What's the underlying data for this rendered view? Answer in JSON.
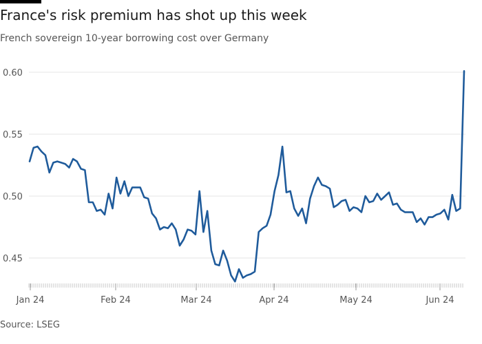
{
  "header": {
    "title": "France's risk premium has shot up this week",
    "subtitle": "French sovereign 10-year borrowing cost over Germany"
  },
  "footer": {
    "source": "Source: LSEG"
  },
  "colors": {
    "line": "#1f5b9b",
    "grid": "#e6e6e6",
    "text": "#555555"
  },
  "chart_data": {
    "type": "line",
    "title": "France's risk premium has shot up this week",
    "subtitle": "French sovereign 10-year borrowing cost over Germany",
    "xlabel": "",
    "ylabel": "",
    "ylim": [
      0.43,
      0.6
    ],
    "yticks": [
      0.45,
      0.5,
      0.55,
      0.6
    ],
    "ytick_labels": [
      "0.45",
      "0.50",
      "0.55",
      "0.60"
    ],
    "xtick_labels": [
      "Jan 24",
      "Feb 24",
      "Mar 24",
      "Apr 24",
      "May 24",
      "Jun 24"
    ],
    "grid": true,
    "series": [
      {
        "values": [
          0.528,
          0.539,
          0.54,
          0.536,
          0.533,
          0.519,
          0.527,
          0.528,
          0.527,
          0.526,
          0.523,
          0.53,
          0.528,
          0.522,
          0.521,
          0.495,
          0.495,
          0.488,
          0.489,
          0.485,
          0.502,
          0.49,
          0.515,
          0.502,
          0.512,
          0.5,
          0.507,
          0.507,
          0.507,
          0.499,
          0.498,
          0.486,
          0.482,
          0.473,
          0.475,
          0.474,
          0.478,
          0.473,
          0.46,
          0.465,
          0.473,
          0.472,
          0.469,
          0.504,
          0.471,
          0.488,
          0.456,
          0.445,
          0.444,
          0.456,
          0.448,
          0.436,
          0.431,
          0.441,
          0.434,
          0.436,
          0.437,
          0.439,
          0.471,
          0.474,
          0.476,
          0.485,
          0.504,
          0.517,
          0.54,
          0.503,
          0.504,
          0.49,
          0.484,
          0.49,
          0.478,
          0.498,
          0.508,
          0.515,
          0.509,
          0.508,
          0.506,
          0.491,
          0.493,
          0.496,
          0.497,
          0.488,
          0.491,
          0.49,
          0.487,
          0.5,
          0.495,
          0.496,
          0.502,
          0.497,
          0.5,
          0.503,
          0.493,
          0.494,
          0.489,
          0.487,
          0.487,
          0.487,
          0.479,
          0.482,
          0.477,
          0.483,
          0.483,
          0.485,
          0.486,
          0.489,
          0.481,
          0.501,
          0.488,
          0.49,
          0.601
        ]
      }
    ]
  }
}
